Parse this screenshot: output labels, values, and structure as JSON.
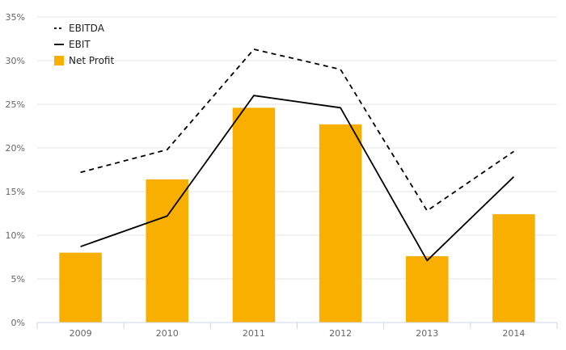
{
  "chart_data": {
    "type": "bar",
    "categories": [
      "2009",
      "2010",
      "2011",
      "2012",
      "2013",
      "2014"
    ],
    "ylim": [
      0,
      35
    ],
    "y_ticks": [
      0,
      5,
      10,
      15,
      20,
      25,
      30,
      35
    ],
    "y_tick_labels": [
      "0%",
      "5%",
      "10%",
      "15%",
      "20%",
      "25%",
      "30%",
      "35%"
    ],
    "grid": true,
    "legend_position": "top-left",
    "title": "",
    "xlabel": "",
    "ylabel": "",
    "series": [
      {
        "name": "EBITDA",
        "type": "line",
        "style": "dashed",
        "color": "#000000",
        "values": [
          17.2,
          19.8,
          31.3,
          29.0,
          12.8,
          19.6
        ]
      },
      {
        "name": "EBIT",
        "type": "line",
        "style": "solid",
        "color": "#000000",
        "values": [
          8.7,
          12.2,
          26.0,
          24.6,
          7.1,
          16.7
        ]
      },
      {
        "name": "Net Profit",
        "type": "bar",
        "color": "#F9AF00",
        "values": [
          8.0,
          16.4,
          24.6,
          22.7,
          7.6,
          12.4
        ]
      }
    ]
  }
}
